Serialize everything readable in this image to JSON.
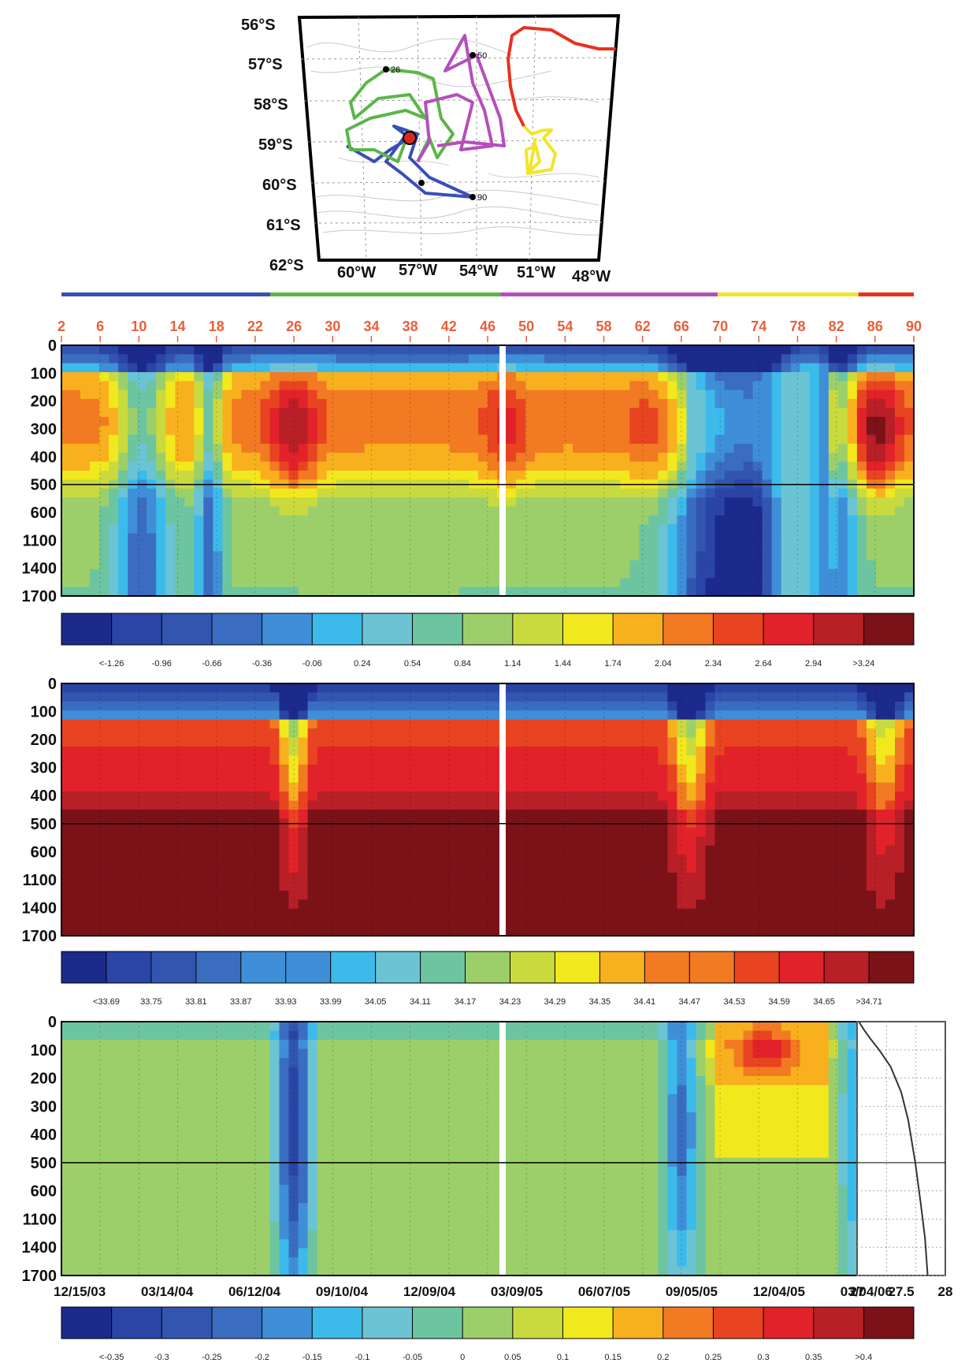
{
  "map": {
    "lat_labels": [
      "56°S",
      "57°S",
      "58°S",
      "59°S",
      "60°S",
      "61°S",
      "62°S"
    ],
    "lon_labels": [
      "60°W",
      "57°W",
      "54°W",
      "51°W",
      "48°W"
    ],
    "marker_labels": [
      "26",
      "50",
      "90"
    ]
  },
  "float_profiles": [
    "2",
    "6",
    "10",
    "14",
    "18",
    "22",
    "26",
    "30",
    "34",
    "38",
    "42",
    "46",
    "50",
    "54",
    "58",
    "62",
    "66",
    "70",
    "74",
    "78",
    "82",
    "86",
    "90"
  ],
  "segment_bar": [
    {
      "color": "#3b4fb4",
      "from": 0,
      "to": 0.245
    },
    {
      "color": "#5bb648",
      "from": 0.245,
      "to": 0.515
    },
    {
      "color": "#b54fbb",
      "from": 0.515,
      "to": 0.77
    },
    {
      "color": "#f2e52b",
      "from": 0.77,
      "to": 0.935
    },
    {
      "color": "#e8321e",
      "from": 0.935,
      "to": 1.0
    }
  ],
  "depth_ticks": [
    "0",
    "100",
    "200",
    "300",
    "400",
    "500",
    "600",
    "1100",
    "1400",
    "1700"
  ],
  "date_ticks": [
    "12/15/03",
    "03/14/04",
    "06/12/04",
    "09/10/04",
    "12/09/04",
    "03/09/05",
    "06/07/05",
    "09/05/05",
    "12/04/05",
    "03/04/06"
  ],
  "colormap": [
    "#1c2a8c",
    "#2a45a6",
    "#3256b0",
    "#3a6dc0",
    "#3f8fd8",
    "#3cbbea",
    "#6bc4d4",
    "#6cc5a0",
    "#9ccf6a",
    "#c9da3e",
    "#f2e81e",
    "#f8b01f",
    "#f17a22",
    "#e84421",
    "#e2222a",
    "#b81f26",
    "#7a1218"
  ],
  "chart_data": [
    {
      "type": "heatmap",
      "title": "",
      "ylabel": "",
      "y_ticks": [
        0,
        100,
        200,
        300,
        400,
        500,
        600,
        1100,
        1400,
        1700
      ],
      "x_ticks_top": [
        2,
        6,
        10,
        14,
        18,
        22,
        26,
        30,
        34,
        38,
        42,
        46,
        50,
        54,
        58,
        62,
        66,
        70,
        74,
        78,
        82,
        86,
        90
      ],
      "colorbar": {
        "labels": [
          "<-1.26",
          "-0.96",
          "-0.66",
          "-0.36",
          "-0.06",
          "0.24",
          "0.54",
          "0.84",
          "1.14",
          "1.44",
          "1.74",
          "2.04",
          "2.34",
          "2.64",
          "2.94",
          ">3.24"
        ]
      }
    },
    {
      "type": "heatmap",
      "title": "",
      "y_ticks": [
        0,
        100,
        200,
        300,
        400,
        500,
        600,
        1100,
        1400,
        1700
      ],
      "colorbar": {
        "labels": [
          "<33.69",
          "33.75",
          "33.81",
          "33.87",
          "33.93",
          "33.99",
          "34.05",
          "34.11",
          "34.17",
          "34.23",
          "34.29",
          "34.35",
          "34.41",
          "34.47",
          "34.53",
          "34.59",
          "34.65",
          ">34.71"
        ]
      }
    },
    {
      "type": "heatmap",
      "title": "",
      "y_ticks": [
        0,
        100,
        200,
        300,
        400,
        500,
        600,
        1100,
        1400,
        1700
      ],
      "x_ticks": [
        "12/15/03",
        "03/14/04",
        "06/12/04",
        "09/10/04",
        "12/09/04",
        "03/09/05",
        "06/07/05",
        "09/05/05",
        "12/04/05",
        "03/04/06"
      ],
      "colorbar": {
        "labels": [
          "<-0.35",
          "-0.3",
          "-0.25",
          "-0.2",
          "-0.15",
          "-0.1",
          "-0.05",
          "0",
          "0.05",
          "0.1",
          "0.15",
          "0.2",
          "0.25",
          "0.3",
          "0.35",
          ">0.4"
        ]
      }
    },
    {
      "type": "line",
      "title": "",
      "x_ticks": [
        "27",
        "27.5",
        "28"
      ],
      "xlim": [
        27,
        28
      ],
      "y_ticks": [
        0,
        100,
        200,
        300,
        400,
        500,
        600,
        1100,
        1400,
        1700
      ],
      "series": [
        {
          "x": [
            27.02,
            27.08,
            27.15,
            27.25,
            27.38,
            27.5,
            27.58,
            27.66,
            27.72,
            27.77,
            27.8
          ],
          "y": [
            0,
            30,
            60,
            100,
            160,
            250,
            350,
            500,
            800,
            1300,
            1800
          ]
        }
      ]
    }
  ]
}
